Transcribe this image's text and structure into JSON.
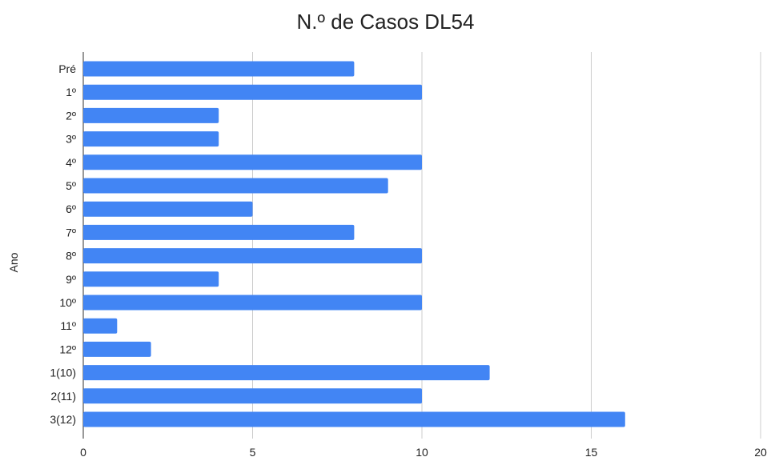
{
  "chart_data": {
    "type": "bar",
    "orientation": "horizontal",
    "title": "N.º de Casos DL54",
    "xlabel": "",
    "ylabel": "Ano",
    "categories": [
      "Pré",
      "1º",
      "2º",
      "3º",
      "4º",
      "5º",
      "6º",
      "7º",
      "8º",
      "9º",
      "10º",
      "11º",
      "12º",
      "1(10)",
      "2(11)",
      "3(12)"
    ],
    "values": [
      8,
      10,
      4,
      4,
      10,
      9,
      5,
      8,
      10,
      4,
      10,
      1,
      2,
      12,
      10,
      16
    ],
    "xlim": [
      0,
      20
    ],
    "xticks": [
      "0",
      "5",
      "10",
      "15",
      "20"
    ],
    "grid": "vertical",
    "legend": "none",
    "bar_color": "#4285f4",
    "grid_color": "#cccccc"
  }
}
